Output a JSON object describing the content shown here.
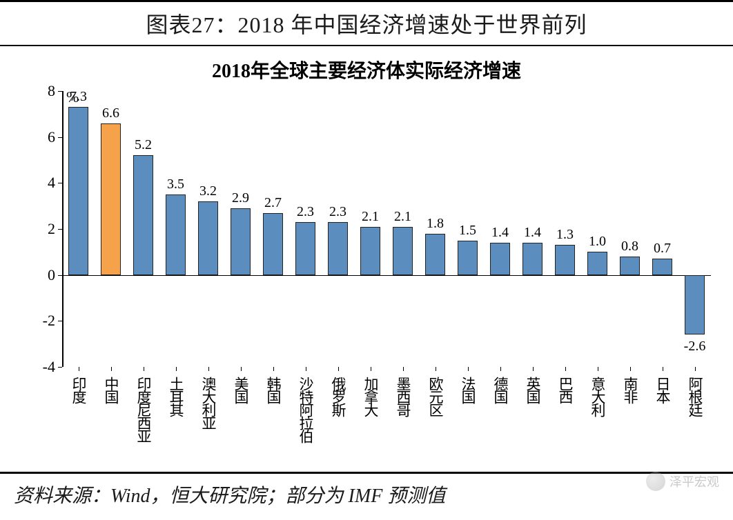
{
  "header": {
    "title": "图表27：2018 年中国经济增速处于世界前列"
  },
  "chart": {
    "type": "bar",
    "title": "2018年全球主要经济体实际经济增速",
    "y_unit_label": "%",
    "y_axis": {
      "min": -4,
      "max": 8,
      "ticks": [
        -4,
        -2,
        0,
        2,
        4,
        6,
        8
      ]
    },
    "colors": {
      "default_bar": "#5B8DBE",
      "highlight_bar": "#F5A24A",
      "bar_border": "#222222",
      "axis": "#000000",
      "background": "#ffffff",
      "text": "#000000"
    },
    "bar_width_ratio": 0.62,
    "title_fontsize": 28,
    "label_fontsize": 20,
    "tick_fontsize": 22,
    "xlabel_fontsize": 21,
    "data": [
      {
        "name": "印度",
        "value": 7.3,
        "highlight": false
      },
      {
        "name": "中国",
        "value": 6.6,
        "highlight": true
      },
      {
        "name": "印度尼西亚",
        "value": 5.2,
        "highlight": false
      },
      {
        "name": "土耳其",
        "value": 3.5,
        "highlight": false
      },
      {
        "name": "澳大利亚",
        "value": 3.2,
        "highlight": false
      },
      {
        "name": "美国",
        "value": 2.9,
        "highlight": false
      },
      {
        "name": "韩国",
        "value": 2.7,
        "highlight": false
      },
      {
        "name": "沙特阿拉伯",
        "value": 2.3,
        "highlight": false
      },
      {
        "name": "俄罗斯",
        "value": 2.3,
        "highlight": false
      },
      {
        "name": "加拿大",
        "value": 2.1,
        "highlight": false
      },
      {
        "name": "墨西哥",
        "value": 2.1,
        "highlight": false
      },
      {
        "name": "欧元区",
        "value": 1.8,
        "highlight": false
      },
      {
        "name": "法国",
        "value": 1.5,
        "highlight": false
      },
      {
        "name": "德国",
        "value": 1.4,
        "highlight": false
      },
      {
        "name": "英国",
        "value": 1.4,
        "highlight": false
      },
      {
        "name": "巴西",
        "value": 1.3,
        "highlight": false
      },
      {
        "name": "意大利",
        "value": 1.0,
        "highlight": false
      },
      {
        "name": "南非",
        "value": 0.8,
        "highlight": false
      },
      {
        "name": "日本",
        "value": 0.7,
        "highlight": false
      },
      {
        "name": "阿根廷",
        "value": -2.6,
        "highlight": false
      }
    ]
  },
  "source": {
    "text": "资料来源：Wind，恒大研究院；部分为 IMF 预测值"
  },
  "watermark": {
    "text": "泽平宏观"
  }
}
